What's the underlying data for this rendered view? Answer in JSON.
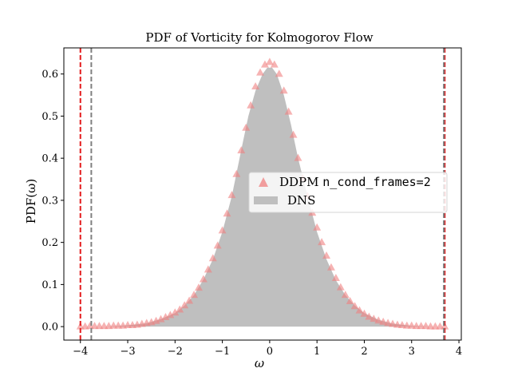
{
  "chart_data": {
    "type": "area",
    "title": "PDF of Vorticity for Kolmogorov Flow",
    "xlabel": "ω",
    "ylabel": "PDF(ω)",
    "xlim": [
      -4.35,
      4.05
    ],
    "ylim": [
      -0.032,
      0.662
    ],
    "xticks": [
      -4,
      -3,
      -2,
      -1,
      0,
      1,
      2,
      3,
      4
    ],
    "yticks": [
      0.0,
      0.1,
      0.2,
      0.3,
      0.4,
      0.5,
      0.6
    ],
    "xtick_labels": [
      "−4",
      "−3",
      "−2",
      "−1",
      "0",
      "1",
      "2",
      "3",
      "4"
    ],
    "ytick_labels": [
      "0.0",
      "0.1",
      "0.2",
      "0.3",
      "0.4",
      "0.5",
      "0.6"
    ],
    "grid": false,
    "legend_position": "center-right",
    "series": [
      {
        "name": "DNS",
        "kind": "filled-area",
        "color": "#bfbfbf",
        "x": [
          -4.0,
          -3.5,
          -3.0,
          -2.6,
          -2.3,
          -2.0,
          -1.8,
          -1.6,
          -1.4,
          -1.2,
          -1.0,
          -0.8,
          -0.6,
          -0.45,
          -0.3,
          -0.15,
          -0.05,
          0.05,
          0.15,
          0.3,
          0.45,
          0.6,
          0.8,
          1.0,
          1.2,
          1.4,
          1.6,
          1.8,
          2.0,
          2.3,
          2.6,
          3.0,
          3.5,
          3.7
        ],
        "y": [
          0.0,
          0.0,
          0.003,
          0.008,
          0.018,
          0.032,
          0.05,
          0.075,
          0.112,
          0.16,
          0.225,
          0.31,
          0.42,
          0.5,
          0.56,
          0.6,
          0.615,
          0.615,
          0.6,
          0.55,
          0.48,
          0.4,
          0.31,
          0.225,
          0.16,
          0.11,
          0.075,
          0.05,
          0.032,
          0.016,
          0.007,
          0.002,
          0.0,
          0.0
        ]
      },
      {
        "name": "DDPM n_cond_frames=2",
        "name_prefix": "DDPM ",
        "name_code": "n_cond_frames=2",
        "kind": "triangle-markers",
        "color": "#f08080",
        "x": [
          -4.0,
          -3.9,
          -3.8,
          -3.7,
          -3.6,
          -3.5,
          -3.4,
          -3.3,
          -3.2,
          -3.1,
          -3.0,
          -2.9,
          -2.8,
          -2.7,
          -2.6,
          -2.5,
          -2.4,
          -2.3,
          -2.2,
          -2.1,
          -2.0,
          -1.9,
          -1.8,
          -1.7,
          -1.6,
          -1.5,
          -1.4,
          -1.3,
          -1.2,
          -1.1,
          -1.0,
          -0.9,
          -0.8,
          -0.7,
          -0.6,
          -0.5,
          -0.4,
          -0.3,
          -0.2,
          -0.1,
          0.0,
          0.1,
          0.2,
          0.3,
          0.4,
          0.5,
          0.6,
          0.7,
          0.8,
          0.9,
          1.0,
          1.1,
          1.2,
          1.3,
          1.4,
          1.5,
          1.6,
          1.7,
          1.8,
          1.9,
          2.0,
          2.1,
          2.2,
          2.3,
          2.4,
          2.5,
          2.6,
          2.7,
          2.8,
          2.9,
          3.0,
          3.1,
          3.2,
          3.3,
          3.4,
          3.5,
          3.6,
          3.7
        ],
        "y": [
          0.0,
          0.0,
          0.001,
          0.001,
          0.001,
          0.001,
          0.001,
          0.002,
          0.002,
          0.002,
          0.003,
          0.003,
          0.004,
          0.006,
          0.008,
          0.01,
          0.013,
          0.017,
          0.022,
          0.027,
          0.033,
          0.04,
          0.05,
          0.061,
          0.075,
          0.092,
          0.112,
          0.135,
          0.162,
          0.192,
          0.228,
          0.268,
          0.312,
          0.362,
          0.418,
          0.472,
          0.525,
          0.57,
          0.603,
          0.622,
          0.628,
          0.622,
          0.6,
          0.56,
          0.51,
          0.455,
          0.4,
          0.352,
          0.31,
          0.27,
          0.235,
          0.2,
          0.168,
          0.14,
          0.115,
          0.093,
          0.075,
          0.06,
          0.048,
          0.038,
          0.03,
          0.023,
          0.018,
          0.014,
          0.011,
          0.008,
          0.006,
          0.004,
          0.003,
          0.002,
          0.002,
          0.001,
          0.001,
          0.001,
          0.0,
          0.0,
          0.0,
          0.0
        ]
      }
    ],
    "vlines": [
      {
        "x": -4.0,
        "color": "#e41a1c",
        "style": "dashed"
      },
      {
        "x": 3.7,
        "color": "#e41a1c",
        "style": "dashed"
      },
      {
        "x": -3.77,
        "color": "#808080",
        "style": "dashed"
      },
      {
        "x": 3.68,
        "color": "#808080",
        "style": "dashed"
      }
    ]
  }
}
